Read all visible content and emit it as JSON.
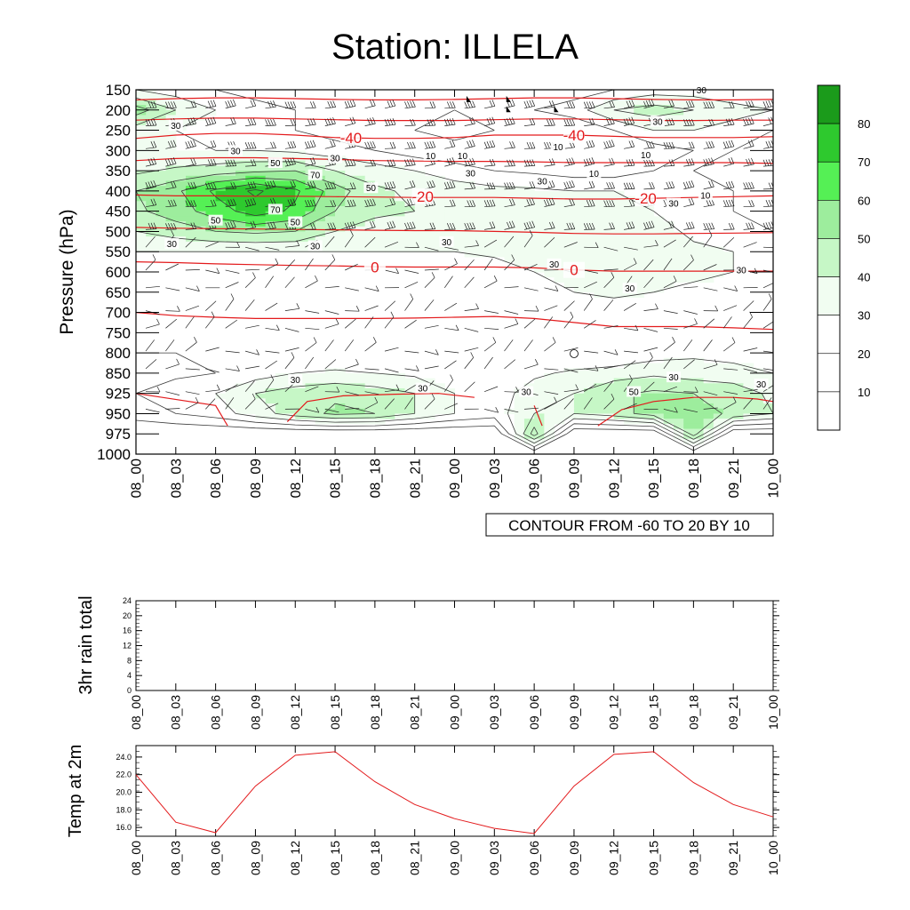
{
  "title": "Station: ILLELA",
  "colors": {
    "temperature_contour": "#e31a1c",
    "humidity_contour": "#3a3a3a",
    "wind_barb": "#222222",
    "rain_line": "#000000",
    "temp2m_line": "#e31a1c",
    "fill_ramp": [
      "#ffffff",
      "#ffffff",
      "#ffffff",
      "#f1fdf1",
      "#c6f7c6",
      "#9ded9d",
      "#55f055",
      "#2ec92e",
      "#1b9b1b"
    ]
  },
  "chart_data": [
    {
      "type": "heatmap",
      "name": "time-pressure cross section",
      "ylabel": "Pressure (hPa)",
      "xlabel": "",
      "categories": [
        "08_00",
        "08_03",
        "08_06",
        "08_09",
        "08_12",
        "08_15",
        "08_18",
        "08_21",
        "09_00",
        "09_03",
        "09_06",
        "09_09",
        "09_12",
        "09_15",
        "09_18",
        "09_21",
        "10_00"
      ],
      "pressure_levels": [
        150,
        200,
        250,
        300,
        350,
        400,
        450,
        500,
        550,
        600,
        650,
        700,
        750,
        800,
        850,
        925,
        950,
        975,
        1000
      ],
      "colorbar": {
        "levels": [
          10,
          20,
          30,
          40,
          50,
          60,
          70,
          80
        ],
        "tick_labels": [
          "10",
          "20",
          "30",
          "40",
          "50",
          "60",
          "70",
          "80"
        ]
      },
      "relative_humidity": [
        [
          30,
          25,
          20,
          15,
          12,
          10,
          10,
          10,
          10,
          12,
          15,
          15,
          20,
          25,
          25,
          20,
          20
        ],
        [
          55,
          40,
          30,
          25,
          20,
          15,
          12,
          10,
          10,
          15,
          20,
          25,
          40,
          45,
          40,
          35,
          30
        ],
        [
          35,
          30,
          25,
          20,
          20,
          15,
          12,
          10,
          8,
          10,
          10,
          12,
          20,
          30,
          30,
          25,
          20
        ],
        [
          30,
          30,
          30,
          30,
          28,
          25,
          20,
          15,
          12,
          10,
          10,
          10,
          12,
          15,
          20,
          20,
          15
        ],
        [
          38,
          42,
          45,
          48,
          50,
          40,
          35,
          30,
          25,
          20,
          18,
          15,
          15,
          20,
          20,
          15,
          15
        ],
        [
          50,
          58,
          72,
          82,
          72,
          55,
          42,
          38,
          35,
          33,
          32,
          30,
          30,
          28,
          25,
          20,
          15
        ],
        [
          48,
          55,
          65,
          75,
          68,
          50,
          42,
          40,
          38,
          36,
          36,
          38,
          38,
          30,
          25,
          20,
          15
        ],
        [
          40,
          45,
          50,
          52,
          50,
          40,
          36,
          35,
          35,
          35,
          36,
          38,
          38,
          34,
          28,
          25,
          20
        ],
        [
          30,
          30,
          30,
          30,
          30,
          30,
          30,
          30,
          30,
          32,
          34,
          36,
          36,
          34,
          32,
          30,
          25
        ],
        [
          25,
          25,
          25,
          25,
          25,
          25,
          25,
          25,
          25,
          25,
          30,
          36,
          34,
          32,
          32,
          30,
          28
        ],
        [
          20,
          20,
          20,
          20,
          20,
          20,
          20,
          20,
          20,
          20,
          22,
          30,
          32,
          30,
          28,
          28,
          28
        ],
        [
          20,
          20,
          20,
          20,
          20,
          20,
          20,
          20,
          20,
          20,
          20,
          22,
          25,
          25,
          25,
          25,
          25
        ],
        [
          20,
          20,
          20,
          20,
          20,
          20,
          20,
          20,
          20,
          20,
          20,
          20,
          22,
          22,
          22,
          22,
          22
        ],
        [
          20,
          20,
          20,
          20,
          20,
          20,
          20,
          20,
          20,
          20,
          20,
          20,
          20,
          25,
          28,
          25,
          25
        ],
        [
          15,
          18,
          20,
          25,
          30,
          32,
          30,
          28,
          25,
          25,
          28,
          32,
          35,
          38,
          35,
          35,
          30
        ],
        [
          20,
          25,
          30,
          40,
          45,
          48,
          45,
          40,
          30,
          25,
          35,
          40,
          48,
          52,
          50,
          45,
          38
        ],
        [
          15,
          20,
          25,
          35,
          45,
          52,
          50,
          40,
          30,
          25,
          40,
          40,
          45,
          55,
          55,
          48,
          40
        ],
        [
          0,
          0,
          0,
          0,
          0,
          0,
          0,
          0,
          0,
          0,
          55,
          0,
          0,
          0,
          55,
          0,
          0
        ],
        [
          0,
          0,
          0,
          0,
          0,
          0,
          0,
          0,
          0,
          0,
          0,
          0,
          0,
          0,
          0,
          0,
          0
        ]
      ],
      "rh_contour_labels": [
        "10",
        "30",
        "50",
        "70"
      ],
      "temperature_contour_labels": [
        "-40",
        "-20",
        "0"
      ],
      "temperature_contours": [
        {
          "label": "-40",
          "pressure": [
            270,
            262,
            258,
            258,
            262,
            268,
            270,
            270,
            268,
            262,
            262,
            262,
            265,
            268,
            268,
            268,
            266
          ]
        },
        {
          "label": "-20",
          "pressure": [
            410,
            412,
            412,
            413,
            413,
            414,
            415,
            416,
            416,
            416,
            418,
            420,
            420,
            418,
            416,
            414,
            412
          ]
        },
        {
          "label": "0",
          "pressure": [
            575,
            577,
            580,
            582,
            584,
            585,
            587,
            588,
            588,
            588,
            590,
            595,
            598,
            598,
            598,
            598,
            598
          ]
        },
        {
          "label": "",
          "pressure": [
            175,
            172,
            170,
            170,
            172,
            174,
            175,
            175,
            174,
            172,
            170,
            170,
            172,
            174,
            175,
            175,
            174
          ]
        },
        {
          "label": "",
          "pressure": [
            225,
            222,
            220,
            220,
            222,
            224,
            226,
            226,
            226,
            224,
            222,
            222,
            224,
            226,
            226,
            225,
            225
          ]
        },
        {
          "label": "",
          "pressure": [
            325,
            320,
            318,
            318,
            320,
            322,
            325,
            326,
            327,
            327,
            328,
            330,
            330,
            330,
            330,
            330,
            332
          ]
        },
        {
          "label": "",
          "pressure": [
            490,
            492,
            493,
            494,
            495,
            496,
            497,
            498,
            498,
            500,
            502,
            505,
            506,
            506,
            505,
            504,
            503
          ]
        },
        {
          "label": "",
          "pressure": [
            700,
            708,
            712,
            715,
            715,
            715,
            715,
            714,
            712,
            710,
            715,
            725,
            735,
            735,
            735,
            738,
            742
          ]
        }
      ],
      "annotation": "CONTOUR FROM -60 TO 20 BY 10"
    },
    {
      "type": "line",
      "name": "3hr rain total",
      "ylabel": "3hr rain total",
      "x": [
        "08_00",
        "08_03",
        "08_06",
        "08_09",
        "08_12",
        "08_15",
        "08_18",
        "08_21",
        "09_00",
        "09_03",
        "09_06",
        "09_09",
        "09_12",
        "09_15",
        "09_18",
        "09_21",
        "10_00"
      ],
      "values": [
        0,
        0,
        0,
        0,
        0,
        0,
        0,
        0,
        0,
        0,
        0,
        0,
        0,
        0,
        0,
        0,
        0
      ],
      "ylim": [
        0,
        24
      ],
      "yticks": [
        "0",
        "4",
        "8",
        "12",
        "16",
        "20",
        "24"
      ]
    },
    {
      "type": "line",
      "name": "Temp at 2m",
      "ylabel": "Temp at 2m",
      "x": [
        "08_00",
        "08_03",
        "08_06",
        "08_09",
        "08_12",
        "08_15",
        "08_18",
        "08_21",
        "09_00",
        "09_03",
        "09_06",
        "09_09",
        "09_12",
        "09_15",
        "09_18",
        "09_21",
        "10_00"
      ],
      "values": [
        22.0,
        16.6,
        15.4,
        20.7,
        24.2,
        24.6,
        21.2,
        18.6,
        17.0,
        15.9,
        15.3,
        20.7,
        24.3,
        24.6,
        21.1,
        18.6,
        17.2
      ],
      "ylim": [
        15.0,
        25.3
      ],
      "yticks": [
        "16.0",
        "18.0",
        "20.0",
        "22.0",
        "24.0"
      ]
    }
  ]
}
